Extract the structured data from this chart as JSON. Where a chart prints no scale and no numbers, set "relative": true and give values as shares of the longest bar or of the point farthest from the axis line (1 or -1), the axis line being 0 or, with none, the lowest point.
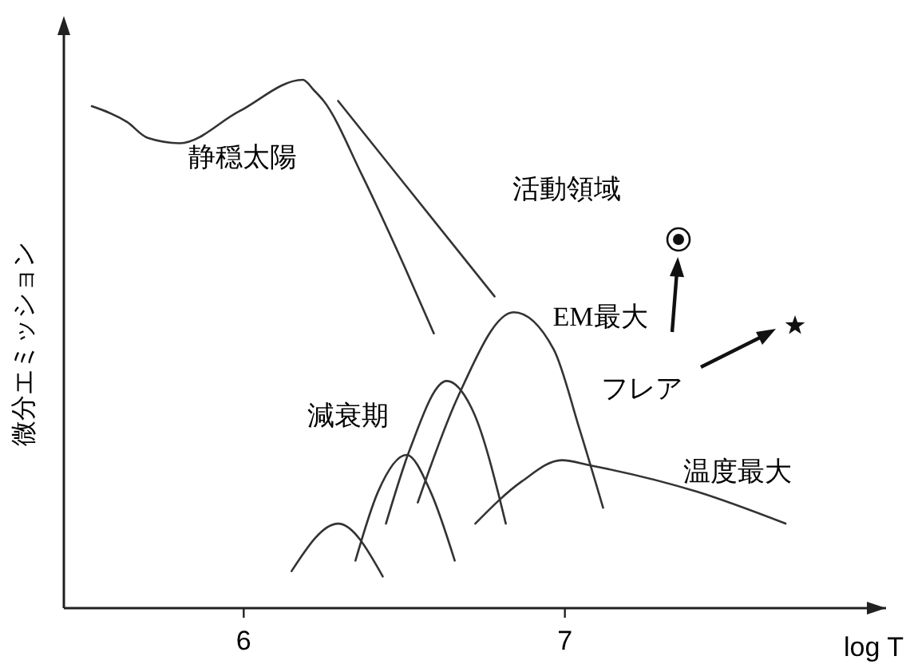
{
  "chart_data": {
    "type": "line",
    "relative": true,
    "xlabel": "log T",
    "ylabel": "微分エミッション",
    "xlim": [
      5.44,
      8.0
    ],
    "xticks": [
      6,
      7
    ],
    "series": [
      {
        "color": "#333333",
        "x": [
          5.527,
          5.637,
          5.701,
          5.801,
          5.985,
          6.184,
          6.219,
          6.249,
          6.368,
          6.498,
          6.592
        ],
        "values": [
          0.95,
          0.92,
          0.89,
          0.88,
          0.94,
          1.0,
          0.98,
          0.96,
          0.82,
          0.65,
          0.52
        ]
      },
      {
        "color": "#333333",
        "x": [
          6.294,
          6.781
        ],
        "values": [
          0.96,
          0.59
        ]
      },
      {
        "color": "#333333",
        "x": [
          6.149,
          6.294,
          6.433
        ],
        "values": [
          0.07,
          0.16,
          0.06
        ]
      },
      {
        "color": "#333333",
        "x": [
          6.348,
          6.418,
          6.507,
          6.582,
          6.657
        ],
        "values": [
          0.09,
          0.22,
          0.29,
          0.22,
          0.09
        ]
      },
      {
        "color": "#333333",
        "x": [
          6.443,
          6.517,
          6.632,
          6.716,
          6.816
        ],
        "values": [
          0.16,
          0.3,
          0.43,
          0.37,
          0.16
        ]
      },
      {
        "color": "#333333",
        "x": [
          6.542,
          6.667,
          6.841,
          6.965,
          7.045,
          7.119
        ],
        "values": [
          0.2,
          0.4,
          0.56,
          0.49,
          0.34,
          0.19
        ]
      },
      {
        "color": "#333333",
        "x": [
          6.721,
          6.866,
          6.99,
          7.08,
          7.413,
          7.687
        ],
        "values": [
          0.16,
          0.24,
          0.28,
          0.27,
          0.22,
          0.16
        ]
      }
    ],
    "annotations": [
      "静穏太陽",
      "活動領域",
      "EM最大",
      "フレア",
      "減衰期",
      "温度最大"
    ]
  }
}
